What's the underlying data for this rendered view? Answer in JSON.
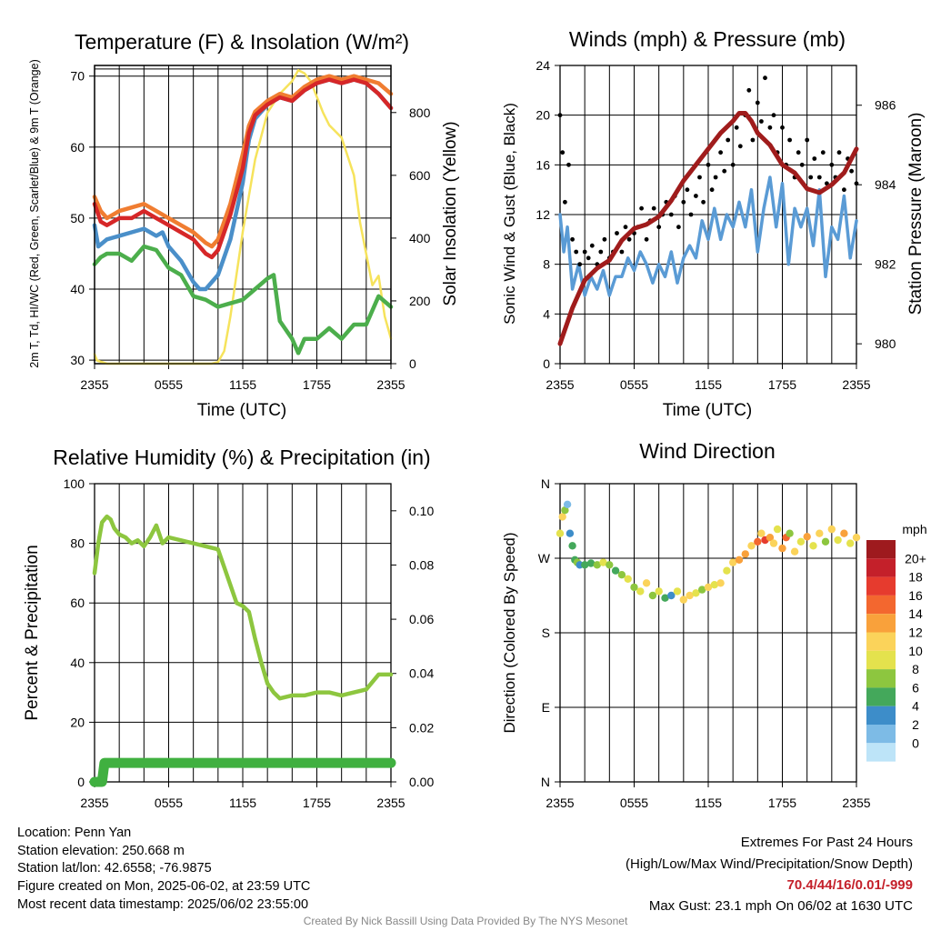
{
  "time_ticks": [
    "2355",
    "0555",
    "1155",
    "1755",
    "2355"
  ],
  "colors": {
    "temp": "#d62728",
    "dewpoint": "#4a8fc9",
    "wetbulb_or_index": "#f07d31",
    "temp9m": "#f07d31",
    "hiwc": "#4cae4c",
    "solar": "#f6e35c",
    "wind": "#5a9bd5",
    "gust": "#000000",
    "pressure": "#a01c1c",
    "rh": "#8dc63f",
    "precip": "#40b040"
  },
  "chart_data": [
    {
      "id": "temp",
      "type": "line",
      "title": "Temperature (F) & Insolation (W/m²)",
      "xlabel": "Time (UTC)",
      "ylabel_left": "2m T, Td, HI/WC (Red, Green, Scarlet/Blue) & 9m T (Orange)",
      "ylabel_right": "Solar Insolation (Yellow)",
      "xlim": [
        0,
        24
      ],
      "ylim": [
        29.5,
        71.5
      ],
      "ylim_right": [
        0,
        950
      ],
      "yticks": [
        30,
        40,
        50,
        60,
        70
      ],
      "yticks_right": [
        0,
        200,
        400,
        600,
        800
      ],
      "grid": true,
      "series": [
        {
          "key": "temp9m",
          "axis": "left",
          "x": [
            0,
            0.5,
            1,
            2,
            3,
            4,
            5,
            6,
            7,
            8,
            9,
            9.5,
            10,
            11,
            12,
            12.5,
            13,
            14,
            15,
            16,
            17,
            18,
            19,
            20,
            21,
            22,
            23,
            24
          ],
          "y": [
            53,
            51,
            50,
            51,
            51.5,
            52,
            51,
            50,
            49,
            48,
            46.5,
            46,
            47,
            52,
            59,
            63,
            65,
            66.5,
            67.5,
            67,
            68.5,
            69.5,
            70,
            69.5,
            70,
            69.5,
            69,
            67.5
          ]
        },
        {
          "key": "temp",
          "axis": "left",
          "x": [
            0,
            0.5,
            1,
            2,
            3,
            4,
            5,
            6,
            7,
            8,
            9,
            9.5,
            10,
            11,
            12,
            12.5,
            13,
            14,
            15,
            16,
            17,
            18,
            19,
            20,
            21,
            22,
            23,
            24
          ],
          "y": [
            52,
            49.5,
            49,
            50,
            50,
            51,
            50,
            49,
            48,
            47,
            45,
            44.5,
            45.5,
            50.5,
            57,
            62,
            64.5,
            66,
            67,
            66.5,
            68,
            69,
            69.5,
            69,
            69.5,
            69,
            67.5,
            65.5
          ]
        },
        {
          "key": "dewpoint",
          "axis": "left",
          "x": [
            0,
            0.3,
            1,
            2,
            3,
            4,
            5,
            5.5,
            6,
            7,
            8,
            8.5,
            9,
            10,
            11,
            12,
            12.5,
            13,
            14,
            15,
            16,
            17,
            18,
            19,
            20,
            21,
            22,
            23,
            24
          ],
          "y": [
            49,
            46,
            47,
            47.5,
            48,
            48.5,
            47.5,
            48,
            46,
            44,
            41,
            40,
            40,
            42,
            47,
            55,
            61,
            64,
            66,
            67,
            66.5,
            68,
            69,
            69.5,
            69,
            69.5,
            69,
            67.5,
            65.5
          ]
        },
        {
          "key": "hiwc",
          "axis": "left",
          "x": [
            0,
            0.5,
            1,
            2,
            3,
            4,
            5,
            6,
            7,
            8,
            9,
            10,
            11,
            12,
            13,
            14,
            14.5,
            15,
            16,
            16.5,
            17,
            18,
            19,
            20,
            21,
            22,
            22.5,
            23,
            24
          ],
          "y": [
            43.5,
            44.5,
            45,
            45,
            44,
            46,
            45.5,
            43,
            42,
            39,
            38.5,
            37.5,
            38,
            38.5,
            40,
            41.5,
            42,
            35.5,
            33,
            31,
            33,
            33,
            34.5,
            33,
            35,
            35,
            37,
            39,
            37.5
          ]
        },
        {
          "key": "solar",
          "axis": "right",
          "x": [
            0,
            0.2,
            1,
            2,
            4,
            6,
            8,
            9.5,
            10,
            10.5,
            11,
            12,
            13,
            14,
            15,
            16,
            16.5,
            17,
            17.5,
            18,
            18.5,
            19,
            20,
            21,
            21.5,
            22,
            22.5,
            23,
            23.5,
            24
          ],
          "y": [
            30,
            10,
            0,
            0,
            0,
            0,
            0,
            0,
            5,
            40,
            150,
            420,
            650,
            800,
            860,
            900,
            935,
            925,
            900,
            850,
            800,
            760,
            720,
            600,
            450,
            350,
            250,
            280,
            150,
            80
          ]
        }
      ]
    },
    {
      "id": "wind",
      "type": "line",
      "title": "Winds (mph) & Pressure (mb)",
      "xlabel": "Time (UTC)",
      "ylabel_left": "Sonic Wind & Gust (Blue, Black)",
      "ylabel_right": "Station Pressure (Maroon)",
      "xlim": [
        0,
        24
      ],
      "ylim": [
        0,
        24
      ],
      "ylim_right": [
        979.5,
        987
      ],
      "yticks": [
        0,
        4,
        8,
        12,
        16,
        20,
        24
      ],
      "yticks_right": [
        980,
        982,
        984,
        986
      ],
      "grid": true,
      "series": [
        {
          "key": "wind",
          "axis": "left",
          "x": [
            0,
            0.3,
            0.6,
            1,
            1.5,
            2,
            2.5,
            3,
            3.5,
            4,
            4.5,
            5,
            5.5,
            6,
            6.5,
            7,
            7.5,
            8,
            8.5,
            9,
            9.5,
            10,
            10.5,
            11,
            11.5,
            12,
            12.5,
            13,
            13.5,
            14,
            14.5,
            15,
            15.5,
            16,
            16.5,
            17,
            17.5,
            18,
            18.5,
            19,
            19.5,
            20,
            20.5,
            21,
            21.5,
            22,
            22.5,
            23,
            23.5,
            24
          ],
          "y": [
            12,
            9,
            11,
            6,
            8,
            5.5,
            7,
            6,
            7.5,
            5.5,
            7,
            7,
            8.5,
            7.5,
            9,
            8,
            6.5,
            8,
            7,
            9,
            6.5,
            8.5,
            9.5,
            8.5,
            11.5,
            10,
            12.5,
            10,
            12,
            11,
            13,
            11,
            14,
            9,
            12.5,
            15,
            11,
            14.5,
            8,
            12.5,
            11,
            12.5,
            9.5,
            14,
            7,
            11,
            10,
            13.5,
            8.5,
            11.5
          ]
        },
        {
          "key": "pressure",
          "axis": "right",
          "x": [
            0,
            1,
            2,
            3,
            4,
            5,
            6,
            7,
            8,
            9,
            10,
            11,
            12,
            13,
            14,
            14.5,
            15,
            15.5,
            16,
            17,
            18,
            19,
            20,
            21,
            22,
            23,
            24
          ],
          "y": [
            980.0,
            980.9,
            981.6,
            981.9,
            982.1,
            982.6,
            982.9,
            983.0,
            983.2,
            983.6,
            984.1,
            984.5,
            984.9,
            985.3,
            985.6,
            985.8,
            985.8,
            985.6,
            985.3,
            985.0,
            984.5,
            984.3,
            983.9,
            983.8,
            984.0,
            984.3,
            984.9
          ]
        }
      ],
      "points": {
        "key": "gust",
        "axis": "left",
        "x": [
          0,
          0.2,
          0.4,
          0.7,
          1,
          1.3,
          1.6,
          2,
          2.3,
          2.6,
          3,
          3.3,
          3.6,
          4,
          4.3,
          4.6,
          5,
          5.3,
          5.6,
          6,
          6.3,
          6.6,
          7,
          7.3,
          7.6,
          8,
          8.3,
          8.6,
          9,
          9.3,
          9.6,
          10,
          10.3,
          10.6,
          11,
          11.3,
          11.6,
          12,
          12.3,
          12.6,
          13,
          13.3,
          13.6,
          14,
          14.3,
          14.6,
          15,
          15.3,
          15.6,
          16,
          16.3,
          16.6,
          17,
          17.3,
          17.6,
          18,
          18.3,
          18.6,
          19,
          19.3,
          19.6,
          20,
          20.3,
          20.6,
          21,
          21.3,
          21.6,
          22,
          22.3,
          22.6,
          23,
          23.3,
          23.6,
          24
        ],
        "y": [
          20,
          17,
          13,
          16,
          10,
          9,
          8,
          9,
          8.5,
          9.5,
          8,
          9,
          10,
          8.5,
          9,
          10.5,
          9,
          11,
          10,
          10.5,
          11,
          12.5,
          10,
          11.5,
          12.5,
          11,
          12,
          13,
          12,
          13.5,
          11,
          13,
          14,
          12,
          13.5,
          15,
          13,
          16,
          14,
          15,
          17,
          15.5,
          18,
          16,
          19,
          17.5,
          20,
          22,
          18,
          21,
          19.5,
          23,
          19,
          20,
          17,
          19,
          16,
          18,
          15,
          17,
          16,
          18,
          15,
          16.5,
          15,
          17,
          14.5,
          16,
          15,
          17,
          14,
          16.5,
          15.5,
          14.5
        ]
      }
    },
    {
      "id": "rh",
      "type": "line",
      "title": "Relative Humidity (%) & Precipitation (in)",
      "xlabel": "",
      "ylabel_left": "Percent & Precipitation",
      "xlim": [
        0,
        24
      ],
      "ylim": [
        0,
        100
      ],
      "ylim_right": [
        0,
        0.11
      ],
      "yticks": [
        0,
        20,
        40,
        60,
        80,
        100
      ],
      "yticks_right": [
        0.0,
        0.02,
        0.04,
        0.06,
        0.08,
        0.1
      ],
      "grid": true,
      "series": [
        {
          "key": "rh",
          "axis": "left",
          "x": [
            0,
            0.3,
            0.6,
            1,
            1.3,
            1.6,
            2,
            2.5,
            3,
            3.5,
            4,
            4.5,
            5,
            5.5,
            6,
            7,
            8,
            9,
            10,
            10.5,
            11,
            11.5,
            12,
            12.5,
            13,
            13.5,
            14,
            14.5,
            15,
            16,
            17,
            18,
            19,
            20,
            21,
            22,
            23,
            24
          ],
          "y": [
            70,
            80,
            87,
            89,
            88,
            85,
            83,
            82,
            80,
            81,
            79,
            82,
            86,
            80,
            82,
            81,
            80,
            79,
            78,
            72,
            66,
            60,
            59,
            57,
            48,
            40,
            33,
            30,
            28,
            29,
            29,
            30,
            30,
            29,
            30,
            31,
            36,
            36
          ]
        },
        {
          "key": "precip",
          "axis": "right",
          "x": [
            0,
            0.6,
            0.8,
            24
          ],
          "y": [
            0,
            0,
            0.007,
            0.007
          ]
        }
      ]
    },
    {
      "id": "wdir",
      "type": "scatter",
      "title": "Wind Direction",
      "ylabel_left": "Direction (Colored By Speed)",
      "xlim": [
        0,
        24
      ],
      "ylim": [
        0,
        360
      ],
      "yticks": [
        "N",
        "E",
        "S",
        "W",
        "N"
      ],
      "grid": true,
      "colorbar_title": "mph",
      "colorbar_labels": [
        "20+",
        "18",
        "16",
        "14",
        "12",
        "10",
        "8",
        "6",
        "4",
        "2",
        "0"
      ],
      "colorbar_colors": [
        "#9e1a1e",
        "#c4202a",
        "#e63b2e",
        "#f3672f",
        "#f9a13b",
        "#fbd35a",
        "#e4e24d",
        "#8dc63f",
        "#44a85b",
        "#3d8dc9",
        "#7dbbe6",
        "#bde4f8"
      ],
      "x": [
        0,
        0.2,
        0.4,
        0.6,
        0.8,
        1,
        1.2,
        1.4,
        1.6,
        2,
        2.5,
        3,
        3.5,
        4,
        4.5,
        5,
        5.5,
        6,
        6.5,
        7,
        7.5,
        8,
        8.5,
        9,
        9.5,
        10,
        10.5,
        11,
        11.5,
        12,
        12.5,
        13,
        13.5,
        14,
        14.5,
        15,
        15.5,
        16,
        16.3,
        16.6,
        17,
        17.3,
        17.6,
        18,
        18.3,
        18.6,
        19,
        19.5,
        20,
        20.5,
        21,
        21.5,
        22,
        22.5,
        23,
        23.5,
        24
      ],
      "y": [
        300,
        320,
        328,
        335,
        300,
        285,
        268,
        265,
        262,
        262,
        264,
        262,
        265,
        262,
        255,
        250,
        245,
        235,
        230,
        240,
        225,
        230,
        222,
        225,
        230,
        220,
        225,
        228,
        232,
        235,
        238,
        240,
        255,
        265,
        268,
        275,
        285,
        290,
        300,
        292,
        295,
        288,
        305,
        282,
        295,
        300,
        278,
        290,
        296,
        285,
        300,
        290,
        305,
        292,
        300,
        288,
        295
      ],
      "speed": [
        10,
        12,
        8,
        2,
        4,
        6,
        6,
        8,
        4,
        6,
        6,
        8,
        10,
        8,
        6,
        8,
        10,
        8,
        10,
        12,
        8,
        10,
        6,
        4,
        10,
        12,
        12,
        10,
        8,
        12,
        10,
        12,
        10,
        12,
        14,
        14,
        12,
        16,
        12,
        18,
        14,
        12,
        10,
        14,
        16,
        8,
        12,
        10,
        14,
        10,
        12,
        8,
        12,
        10,
        14,
        10,
        12
      ]
    }
  ],
  "info": {
    "location": "Location: Penn Yan",
    "elevation": "Station elevation: 250.668 m",
    "latlon": "Station lat/lon: 42.6558; -76.9875",
    "created": "Figure created on Mon, 2025-06-02, at 23:59 UTC",
    "recent": "Most recent data timestamp: 2025/06/02 23:55:00"
  },
  "extremes": {
    "title": "Extremes For Past 24 Hours",
    "subtitle": "(High/Low/Max Wind/Precipitation/Snow Depth)",
    "values": "70.4/44/16/0.01/-999",
    "gust": "Max Gust: 23.1 mph On 06/02 at 1630 UTC"
  },
  "credit": "Created By Nick Bassill Using Data Provided By The NYS Mesonet"
}
